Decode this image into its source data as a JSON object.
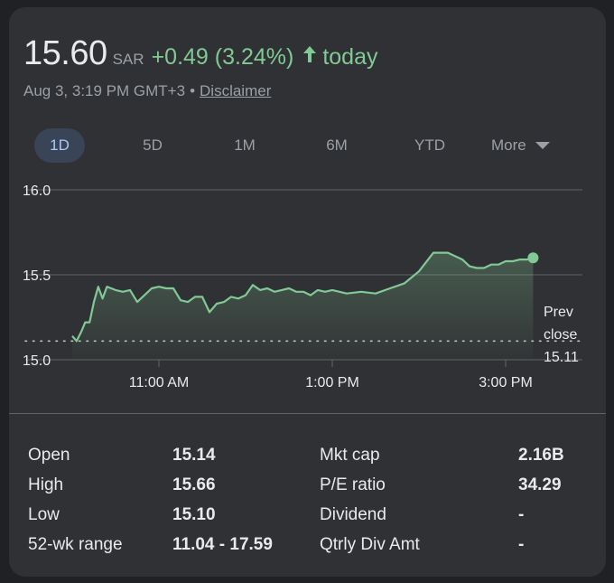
{
  "quote": {
    "price": "15.60",
    "currency": "SAR",
    "change": "+0.49 (3.24%)",
    "period": "today",
    "timestamp": "Aug 3, 3:19 PM GMT+3",
    "separator": "•",
    "disclaimer": "Disclaimer"
  },
  "ranges": {
    "items": [
      "1D",
      "5D",
      "1M",
      "6M",
      "YTD"
    ],
    "more_label": "More",
    "selected": "1D"
  },
  "colors": {
    "accent_green": "#81c995",
    "selected_chip_bg": "#394457",
    "card_bg": "#303134"
  },
  "chart_data": {
    "type": "area",
    "x_ticks": [
      "11:00 AM",
      "1:00 PM",
      "3:00 PM"
    ],
    "y_ticks": [
      "16.0",
      "15.5",
      "15.0"
    ],
    "ylim": [
      15.0,
      16.0
    ],
    "xlim": [
      "10:00",
      "15:20"
    ],
    "grid": true,
    "prev_close": {
      "label_top": "Prev",
      "label_mid": "close",
      "value": "15.11",
      "y": 15.11
    },
    "series": [
      {
        "x": [
          "10:00",
          "10:03",
          "10:06",
          "10:09",
          "10:12",
          "10:15",
          "10:18",
          "10:21",
          "10:24",
          "10:27",
          "10:30",
          "10:35",
          "10:40",
          "10:45",
          "10:50",
          "10:55",
          "11:00",
          "11:05",
          "11:10",
          "11:15",
          "11:20",
          "11:25",
          "11:30",
          "11:35",
          "11:40",
          "11:45",
          "11:50",
          "11:55",
          "12:00",
          "12:05",
          "12:10",
          "12:15",
          "12:20",
          "12:25",
          "12:30",
          "12:35",
          "12:40",
          "12:45",
          "12:50",
          "12:55",
          "13:00",
          "13:10",
          "13:20",
          "13:30",
          "13:40",
          "13:50",
          "14:00",
          "14:10",
          "14:20",
          "14:30",
          "14:35",
          "14:40",
          "14:45",
          "14:50",
          "14:55",
          "15:00",
          "15:05",
          "15:10",
          "15:15",
          "15:19"
        ],
        "y": [
          15.14,
          15.11,
          15.16,
          15.22,
          15.22,
          15.34,
          15.43,
          15.36,
          15.43,
          15.42,
          15.41,
          15.4,
          15.41,
          15.34,
          15.38,
          15.42,
          15.43,
          15.42,
          15.42,
          15.35,
          15.34,
          15.37,
          15.37,
          15.28,
          15.33,
          15.34,
          15.37,
          15.36,
          15.38,
          15.44,
          15.41,
          15.42,
          15.4,
          15.41,
          15.42,
          15.4,
          15.4,
          15.38,
          15.41,
          15.4,
          15.41,
          15.39,
          15.4,
          15.39,
          15.42,
          15.45,
          15.52,
          15.63,
          15.63,
          15.59,
          15.55,
          15.54,
          15.54,
          15.56,
          15.56,
          15.58,
          15.58,
          15.59,
          15.59,
          15.6
        ],
        "color": "#81c995"
      }
    ]
  },
  "stats": {
    "left": [
      {
        "label": "Open",
        "value": "15.14"
      },
      {
        "label": "High",
        "value": "15.66"
      },
      {
        "label": "Low",
        "value": "15.10"
      },
      {
        "label": "52-wk range",
        "value": "11.04 - 17.59"
      }
    ],
    "right": [
      {
        "label": "Mkt cap",
        "value": "2.16B"
      },
      {
        "label": "P/E ratio",
        "value": "34.29"
      },
      {
        "label": "Dividend",
        "value": "-"
      },
      {
        "label": "Qtrly Div Amt",
        "value": "-"
      }
    ]
  }
}
